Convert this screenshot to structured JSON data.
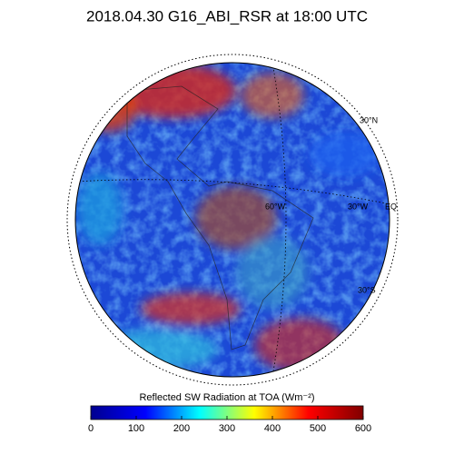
{
  "title": "2018.04.30 G16_ABI_RSR at 18:00 UTC",
  "map_labels": [
    "30°N",
    "60°W",
    "30°W",
    "EQ",
    "30°S"
  ],
  "colorbar": {
    "label": "Reflected SW Radiation at TOA (Wm⁻²)",
    "colormap": "jet",
    "range": [
      0,
      600
    ],
    "ticks": [
      0,
      100,
      200,
      300,
      400,
      500,
      600
    ]
  }
}
